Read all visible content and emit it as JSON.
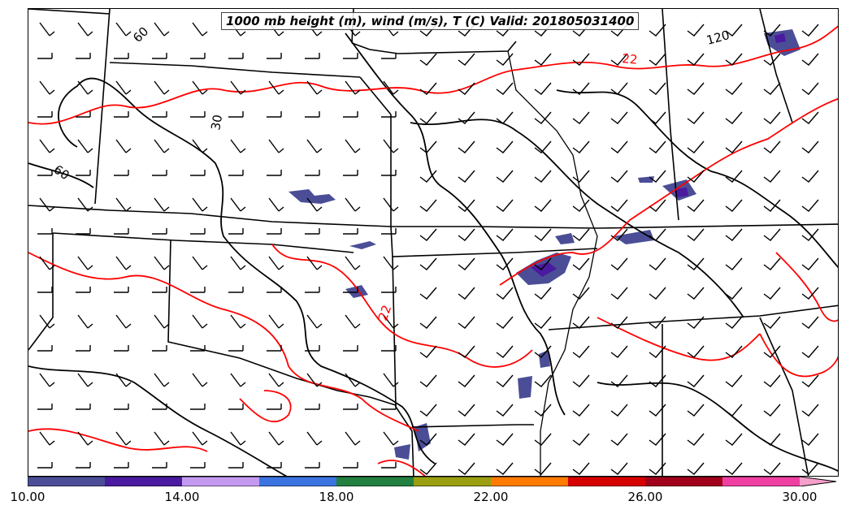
{
  "title": "1000 mb height (m), wind (m/s), T (C) Valid: 201805031400",
  "colorbar": {
    "ticks": [
      "10.00",
      "14.00",
      "18.00",
      "22.00",
      "26.00",
      "30.00"
    ],
    "colors": [
      "#4b4e96",
      "#4a1aa0",
      "#c49af0",
      "#3b73e0",
      "#228040",
      "#9a9e10",
      "#ff7b00",
      "#d60000",
      "#a0001a",
      "#ef3fa3",
      "#f6a0cc"
    ]
  },
  "height_labels": [
    "60",
    "30",
    "60",
    "120"
  ],
  "temperature_labels": [
    "22",
    "22"
  ],
  "colors": {
    "temperature_contour": "#ff0000",
    "height_contour": "#000000",
    "boundaries": "#000000"
  }
}
